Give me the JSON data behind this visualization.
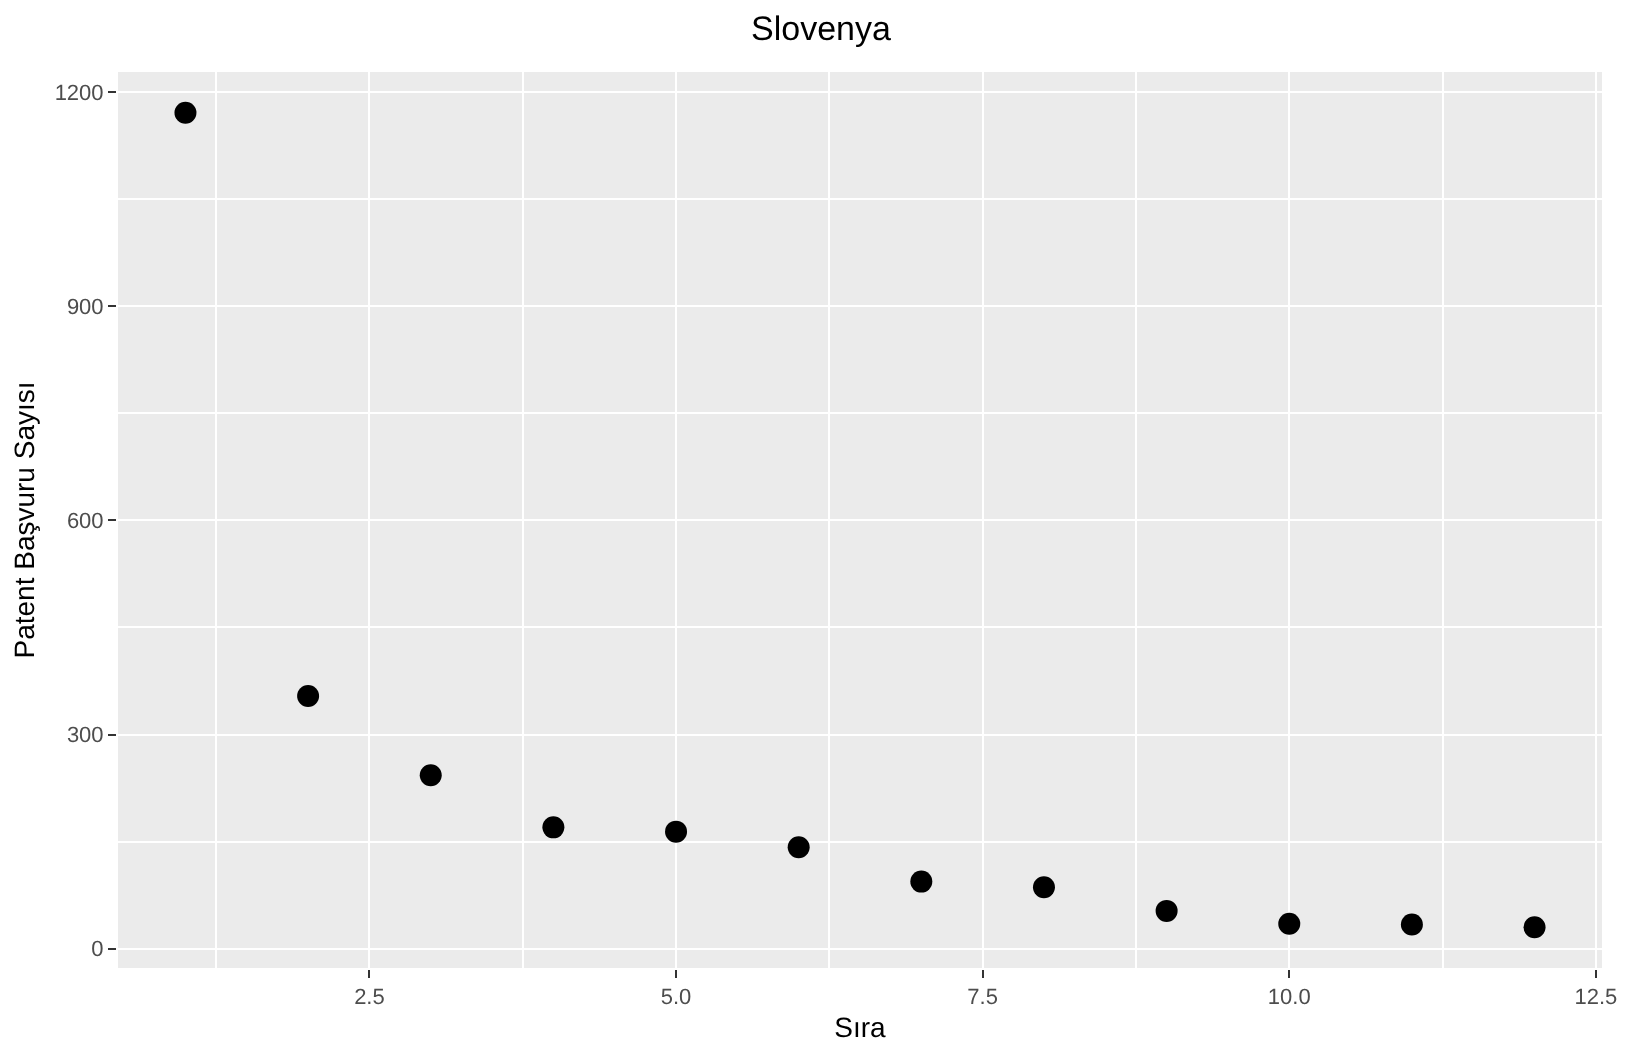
{
  "chart_data": {
    "type": "scatter",
    "title": "Slovenya",
    "xlabel": "Sıra",
    "ylabel": "Patent Başvuru Sayısı",
    "x": [
      1,
      2,
      3,
      4,
      5,
      6,
      7,
      8,
      9,
      10,
      11,
      12
    ],
    "series": [
      {
        "color": "#000000",
        "values": [
          1171,
          354,
          243,
          170,
          164,
          142,
          94,
          86,
          53,
          35,
          34,
          30
        ]
      }
    ],
    "xlim": [
      0.45,
      12.55
    ],
    "xticks": [
      2.5,
      {
        "value": 5,
        "label": "5.0"
      },
      7.5,
      {
        "value": 10,
        "label": "10.0"
      },
      12.5
    ],
    "ylim": [
      -27,
      1228
    ],
    "yticks": [
      0,
      300,
      600,
      900,
      1200
    ],
    "grid": true,
    "marker": "circle"
  }
}
